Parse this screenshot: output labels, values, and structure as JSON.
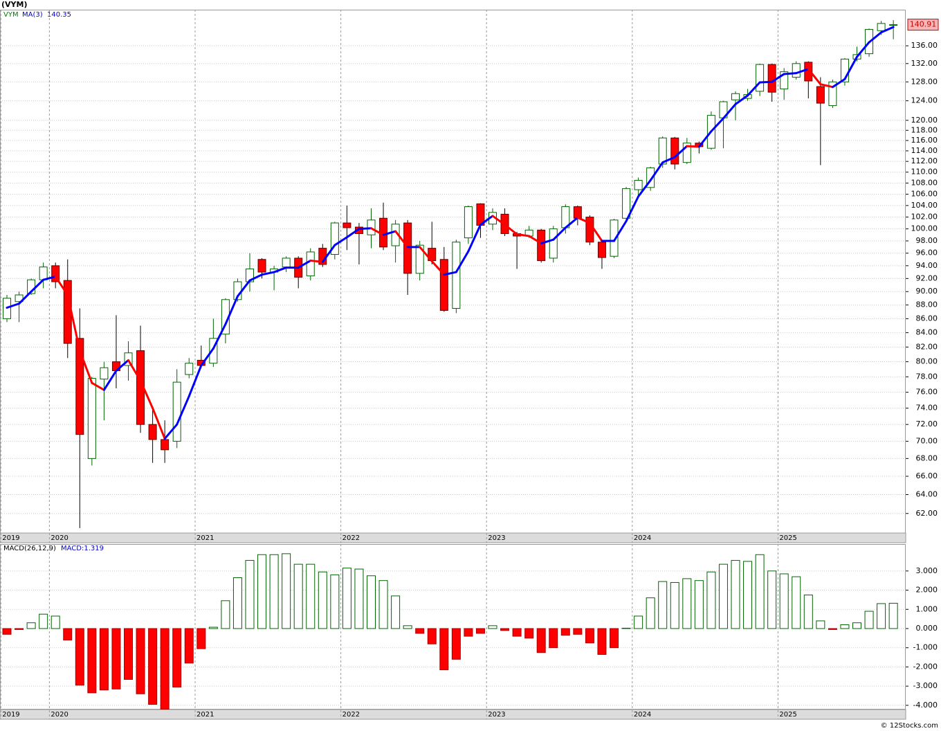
{
  "chart_data": [
    {
      "type": "candlestick",
      "title": "(VYM)",
      "symbol": "VYM",
      "categories": [
        "2019",
        null,
        null,
        null,
        "2020",
        null,
        null,
        null,
        null,
        null,
        null,
        null,
        null,
        null,
        null,
        null,
        "2021",
        null,
        null,
        null,
        null,
        null,
        null,
        null,
        null,
        null,
        null,
        null,
        "2022",
        null,
        null,
        null,
        null,
        null,
        null,
        null,
        null,
        null,
        null,
        null,
        "2023",
        null,
        null,
        null,
        null,
        null,
        null,
        null,
        null,
        null,
        null,
        null,
        "2024",
        null,
        null,
        null,
        null,
        null,
        null,
        null,
        null,
        null,
        null,
        null,
        "2025",
        null,
        null,
        null,
        null,
        null,
        null,
        null,
        null,
        null
      ],
      "open": [
        86,
        88.5,
        89.7,
        91.8,
        94,
        91.7,
        83.2,
        68,
        77.7,
        80,
        79.5,
        81.5,
        72,
        70.2,
        70,
        78.3,
        80.2,
        79.8,
        83.8,
        88.8,
        91.5,
        95,
        93,
        93.8,
        95.2,
        92.4,
        96.8,
        95.8,
        101,
        100.3,
        99,
        101.8,
        97.2,
        101,
        92.8,
        96.8,
        95,
        87.5,
        98.5,
        104.3,
        100.8,
        102.5,
        99.2,
        98.8,
        99.8,
        95.2,
        100.2,
        103.8,
        102,
        97.8,
        95.5,
        101.8,
        106.8,
        107.2,
        111.5,
        116.5,
        111.8,
        115.5,
        114.5,
        120.5,
        124.2,
        124.5,
        126,
        131.8,
        126.5,
        129,
        132.3,
        127,
        123,
        128,
        133,
        134.2,
        139.5,
        140.9
      ],
      "high": [
        89.5,
        90,
        92,
        94.5,
        94.5,
        95,
        87.5,
        78,
        80,
        86.5,
        82.8,
        85,
        74,
        72.5,
        79,
        80.5,
        82.2,
        86,
        89,
        92,
        96,
        95.2,
        94,
        95.5,
        95.5,
        96.8,
        97.5,
        101.2,
        104,
        101,
        103.5,
        104.5,
        101.5,
        101.5,
        98,
        101.2,
        97,
        98.2,
        104,
        104.4,
        103.5,
        103.5,
        99.5,
        100.5,
        100,
        100.5,
        104.2,
        104,
        102.3,
        98.2,
        101.7,
        107.3,
        109,
        111,
        116.8,
        116.7,
        116.5,
        115.8,
        121.8,
        124,
        126,
        126.5,
        132,
        132,
        131,
        132.5,
        132.5,
        129,
        128.5,
        133.2,
        135.8,
        140,
        141.8,
        142
      ],
      "low": [
        85.5,
        85.5,
        89.5,
        90.5,
        90.5,
        80.5,
        60.5,
        67.2,
        72.5,
        76.5,
        77.5,
        71,
        67.5,
        67.5,
        69.2,
        77.8,
        79.2,
        79.3,
        82.5,
        88.5,
        90,
        92,
        90.2,
        93,
        90.5,
        91.7,
        93.8,
        95,
        96.5,
        94.2,
        96.8,
        96.5,
        94.5,
        89.5,
        91.7,
        94.2,
        87,
        86.8,
        97.5,
        98.5,
        99.8,
        98.8,
        93.5,
        98.5,
        94.5,
        94.5,
        99.2,
        100.6,
        97.3,
        93.5,
        95.2,
        101.5,
        105.5,
        106.6,
        110.8,
        110.5,
        111.5,
        113.5,
        114.2,
        114.5,
        120,
        124,
        125,
        123.8,
        124.2,
        128.5,
        124.5,
        111.3,
        122.5,
        127.2,
        132.5,
        133.5,
        138.5,
        137.5
      ],
      "close": [
        89,
        89.5,
        91.8,
        93.8,
        91.5,
        82.5,
        70.8,
        77.8,
        79.2,
        78.8,
        81.2,
        72,
        70.2,
        69,
        77.3,
        79.8,
        79.5,
        83.2,
        88.8,
        91.5,
        93.5,
        93,
        93.5,
        95.2,
        92.2,
        96.2,
        94.2,
        101,
        100.2,
        99.2,
        101.5,
        97,
        100.8,
        92.8,
        97.3,
        94.8,
        87.2,
        97.8,
        103.8,
        100.6,
        102.8,
        99.2,
        98.8,
        99.8,
        94.8,
        100,
        103.8,
        101.8,
        97.8,
        95.3,
        101.5,
        107,
        108.5,
        110.8,
        116.5,
        111.5,
        115.5,
        114.8,
        121,
        123.8,
        125.5,
        125.3,
        131.8,
        125.8,
        130.2,
        132,
        128.2,
        123.5,
        128,
        133,
        134,
        139.8,
        141.2,
        140.91
      ],
      "up_color": "#006400",
      "down_color": "#ff0000",
      "overlay": {
        "name": "MA(3)",
        "up_color": "#0000ff",
        "down_color": "#ff0000",
        "values": [
          87.6,
          88.2,
          90.0,
          91.8,
          92.3,
          89.5,
          81.5,
          77.2,
          76.3,
          78.8,
          80.2,
          77.5,
          74.0,
          70.3,
          72.0,
          75.5,
          79.5,
          81.8,
          85.2,
          89.3,
          91.7,
          92.6,
          93.0,
          93.7,
          93.7,
          94.8,
          94.6,
          97.3,
          98.6,
          100.0,
          100.1,
          99.0,
          99.6,
          97.0,
          97.0,
          94.7,
          92.6,
          93.0,
          96.3,
          100.7,
          102.2,
          100.7,
          99.1,
          98.8,
          97.6,
          98.2,
          100.2,
          101.9,
          101.0,
          98.0,
          98.0,
          101.3,
          105.6,
          108.5,
          111.8,
          112.8,
          114.9,
          114.8,
          117.8,
          120.4,
          123.3,
          125.1,
          127.9,
          128.0,
          129.7,
          129.9,
          130.8,
          127.5,
          126.9,
          128.6,
          133.5,
          136.8,
          139.1,
          140.35
        ]
      },
      "log_scale": true,
      "grid": true,
      "ylim": [
        60,
        144.5
      ],
      "yticks": [
        {
          "value": 62,
          "label": "62.00"
        },
        {
          "value": 64,
          "label": "64.00"
        },
        {
          "value": 66,
          "label": "66.00"
        },
        {
          "value": 68,
          "label": "68.00"
        },
        {
          "value": 70,
          "label": "70.00"
        },
        {
          "value": 72,
          "label": "72.00"
        },
        {
          "value": 74,
          "label": "74.00"
        },
        {
          "value": 76,
          "label": "76.00"
        },
        {
          "value": 78,
          "label": "78.00"
        },
        {
          "value": 80,
          "label": "80.00"
        },
        {
          "value": 82,
          "label": "82.00"
        },
        {
          "value": 84,
          "label": "84.00"
        },
        {
          "value": 86,
          "label": "86.00"
        },
        {
          "value": 88,
          "label": "88.00"
        },
        {
          "value": 90,
          "label": "90.00"
        },
        {
          "value": 92,
          "label": "92.00"
        },
        {
          "value": 94,
          "label": "94.00"
        },
        {
          "value": 96,
          "label": "96.00"
        },
        {
          "value": 98,
          "label": "98.00"
        },
        {
          "value": 100,
          "label": "100.00"
        },
        {
          "value": 102,
          "label": "102.00"
        },
        {
          "value": 104,
          "label": "104.00"
        },
        {
          "value": 106,
          "label": "106.00"
        },
        {
          "value": 108,
          "label": "108.00"
        },
        {
          "value": 110,
          "label": "110.00"
        },
        {
          "value": 112,
          "label": "112.00"
        },
        {
          "value": 114,
          "label": "114.00"
        },
        {
          "value": 116,
          "label": "116.00"
        },
        {
          "value": 118,
          "label": "118.00"
        },
        {
          "value": 120,
          "label": "120.00"
        },
        {
          "value": 124,
          "label": "124.00"
        },
        {
          "value": 128,
          "label": "128.00"
        },
        {
          "value": 132,
          "label": "132.00"
        },
        {
          "value": 136,
          "label": "136.00"
        }
      ]
    },
    {
      "type": "bar",
      "title": "MACD(26,12,9)",
      "categories": [
        "2019",
        null,
        null,
        null,
        "2020",
        null,
        null,
        null,
        null,
        null,
        null,
        null,
        null,
        null,
        null,
        null,
        "2021",
        null,
        null,
        null,
        null,
        null,
        null,
        null,
        null,
        null,
        null,
        null,
        "2022",
        null,
        null,
        null,
        null,
        null,
        null,
        null,
        null,
        null,
        null,
        null,
        "2023",
        null,
        null,
        null,
        null,
        null,
        null,
        null,
        null,
        null,
        null,
        null,
        "2024",
        null,
        null,
        null,
        null,
        null,
        null,
        null,
        null,
        null,
        null,
        null,
        "2025",
        null,
        null,
        null,
        null,
        null,
        null,
        null,
        null,
        null
      ],
      "series": [
        {
          "name": "MACD",
          "value_label": "MACD:1.319",
          "up_color": "#006400",
          "down_color": "#ff0000",
          "values": [
            -0.3,
            -0.05,
            0.3,
            0.75,
            0.65,
            -0.6,
            -2.95,
            -3.35,
            -3.2,
            -3.15,
            -2.65,
            -3.4,
            -3.95,
            -4.2,
            -3.05,
            -1.8,
            -1.05,
            0.07,
            1.45,
            2.65,
            3.55,
            3.85,
            3.85,
            3.9,
            3.35,
            3.35,
            2.95,
            2.8,
            3.15,
            3.1,
            2.75,
            2.5,
            1.7,
            0.15,
            -0.25,
            -0.8,
            -2.15,
            -1.6,
            -0.4,
            -0.25,
            0.15,
            -0.1,
            -0.4,
            -0.5,
            -1.25,
            -1.0,
            -0.35,
            -0.3,
            -0.75,
            -1.35,
            -1.0,
            0.02,
            0.65,
            1.6,
            2.45,
            2.4,
            2.6,
            2.5,
            2.95,
            3.35,
            3.55,
            3.5,
            3.85,
            3.0,
            2.85,
            2.7,
            1.75,
            0.4,
            -0.05,
            0.2,
            0.3,
            0.9,
            1.3,
            1.319
          ]
        }
      ],
      "grid": true,
      "ylim": [
        -4.22,
        4.4
      ],
      "yticks": [
        {
          "value": 3,
          "label": "3.000"
        },
        {
          "value": 2,
          "label": "2.000"
        },
        {
          "value": 1,
          "label": "1.000"
        },
        {
          "value": 0,
          "label": "0.000"
        },
        {
          "value": -1,
          "label": "-1.000"
        },
        {
          "value": -2,
          "label": "-2.000"
        },
        {
          "value": -3,
          "label": "-3.000"
        },
        {
          "value": -4,
          "label": "-4.000"
        }
      ]
    }
  ],
  "footer": "© 12Stocks.com"
}
